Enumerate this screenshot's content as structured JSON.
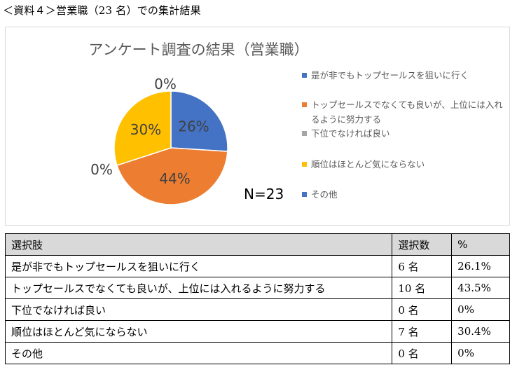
{
  "heading": "＜資料４＞営業職（23 名）での集計結果",
  "chart_data": {
    "type": "pie",
    "title": "アンケート調査の結果（営業職）",
    "note": "N=23",
    "categories": [
      "是が非でもトップセールスを狙いに行く",
      "トップセールスでなくても良いが、上位には入れるように努力する",
      "下位でなければ良い",
      "順位はほとんど気にならない",
      "その他"
    ],
    "values": [
      26,
      44,
      0,
      30,
      0
    ],
    "labels": [
      "26%",
      "44%",
      "0%",
      "30%",
      "0%"
    ],
    "colors": [
      "#4472c4",
      "#ed7d31",
      "#a5a5a5",
      "#ffc000",
      "#4472c4"
    ],
    "legend_position": "right"
  },
  "table": {
    "headers": [
      "選択肢",
      "選択数",
      "%"
    ],
    "rows": [
      [
        "是が非でもトップセールスを狙いに行く",
        "6 名",
        "26.1%"
      ],
      [
        "トップセールスでなくても良いが、上位には入れるように努力する",
        "10 名",
        "43.5%"
      ],
      [
        "下位でなければ良い",
        "0 名",
        "0%"
      ],
      [
        "順位はほとんど気にならない",
        "7 名",
        "30.4%"
      ],
      [
        "その他",
        "0 名",
        "0%"
      ]
    ]
  }
}
